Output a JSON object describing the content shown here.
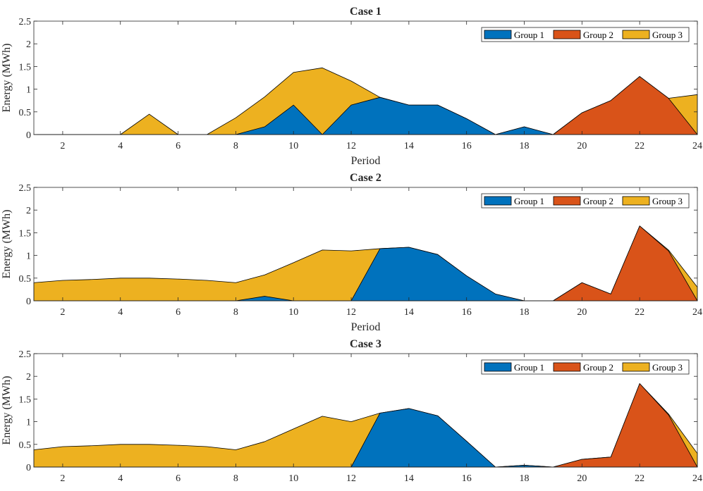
{
  "chart_data": [
    {
      "type": "area",
      "title": "Case 1",
      "xlabel": "Period",
      "ylabel": "Energy (MWh)",
      "xlim": [
        1,
        24
      ],
      "ylim": [
        0,
        2.5
      ],
      "xticks": [
        2,
        4,
        6,
        8,
        10,
        12,
        14,
        16,
        18,
        20,
        22,
        24
      ],
      "yticks": [
        0,
        0.5,
        1,
        1.5,
        2,
        2.5
      ],
      "x": [
        1,
        2,
        3,
        4,
        5,
        6,
        7,
        8,
        9,
        10,
        11,
        12,
        13,
        14,
        15,
        16,
        17,
        18,
        19,
        20,
        21,
        22,
        23,
        24
      ],
      "legend_position": "top-right",
      "series": [
        {
          "name": "Group 1",
          "color": "#0072BD",
          "values": [
            0,
            0,
            0,
            0,
            0,
            0,
            0,
            0,
            0.17,
            0.65,
            0,
            0.65,
            0.82,
            0.65,
            0.65,
            0.35,
            0,
            0.17,
            0,
            0,
            0,
            0,
            0,
            0
          ]
        },
        {
          "name": "Group 2",
          "color": "#D95319",
          "values": [
            0,
            0,
            0,
            0,
            0,
            0,
            0,
            0,
            0,
            0,
            0,
            0,
            0,
            0,
            0,
            0,
            0,
            0,
            0,
            0.48,
            0.75,
            1.28,
            0.8,
            0
          ]
        },
        {
          "name": "Group 3",
          "color": "#EDB120",
          "values": [
            0,
            0,
            0,
            0,
            0.45,
            0,
            0,
            0.37,
            0.83,
            1.37,
            1.47,
            1.18,
            0.82,
            0.65,
            0.65,
            0.35,
            0,
            0.17,
            0,
            0.48,
            0.75,
            1.28,
            0.8,
            0.88
          ]
        }
      ]
    },
    {
      "type": "area",
      "title": "Case 2",
      "xlabel": "Period",
      "ylabel": "Energy (MWh)",
      "xlim": [
        1,
        24
      ],
      "ylim": [
        0,
        2.5
      ],
      "xticks": [
        2,
        4,
        6,
        8,
        10,
        12,
        14,
        16,
        18,
        20,
        22,
        24
      ],
      "yticks": [
        0,
        0.5,
        1,
        1.5,
        2,
        2.5
      ],
      "x": [
        1,
        2,
        3,
        4,
        5,
        6,
        7,
        8,
        9,
        10,
        11,
        12,
        13,
        14,
        15,
        16,
        17,
        18,
        19,
        20,
        21,
        22,
        23,
        24
      ],
      "legend_position": "top-right",
      "series": [
        {
          "name": "Group 1",
          "color": "#0072BD",
          "values": [
            0,
            0,
            0,
            0,
            0,
            0,
            0,
            0,
            0.1,
            0,
            0,
            0,
            1.15,
            1.18,
            1.02,
            0.55,
            0.15,
            0,
            0,
            0,
            0,
            0,
            0,
            0
          ]
        },
        {
          "name": "Group 2",
          "color": "#D95319",
          "values": [
            0,
            0,
            0,
            0,
            0,
            0,
            0,
            0,
            0,
            0,
            0,
            0,
            0,
            0,
            0,
            0,
            0,
            0,
            0,
            0.4,
            0.15,
            1.65,
            1.1,
            0
          ]
        },
        {
          "name": "Group 3",
          "color": "#EDB120",
          "values": [
            0.4,
            0.45,
            0.47,
            0.5,
            0.5,
            0.48,
            0.45,
            0.4,
            0.57,
            0.84,
            1.12,
            1.1,
            1.15,
            1.18,
            1.02,
            0.55,
            0.15,
            0,
            0,
            0.4,
            0.15,
            1.65,
            1.12,
            0.3
          ]
        }
      ]
    },
    {
      "type": "area",
      "title": "Case 3",
      "xlabel": "",
      "ylabel": "Energy (MWh)",
      "xlim": [
        1,
        24
      ],
      "ylim": [
        0,
        2.5
      ],
      "xticks": [
        2,
        4,
        6,
        8,
        10,
        12,
        14,
        16,
        18,
        20,
        22,
        24
      ],
      "yticks": [
        0,
        0.5,
        1,
        1.5,
        2,
        2.5
      ],
      "x": [
        1,
        2,
        3,
        4,
        5,
        6,
        7,
        8,
        9,
        10,
        11,
        12,
        13,
        14,
        15,
        16,
        17,
        18,
        19,
        20,
        21,
        22,
        23,
        24
      ],
      "legend_position": "top-right",
      "series": [
        {
          "name": "Group 1",
          "color": "#0072BD",
          "values": [
            0,
            0,
            0,
            0,
            0,
            0,
            0,
            0,
            0,
            0,
            0,
            0,
            1.19,
            1.29,
            1.13,
            0.57,
            0,
            0.04,
            0,
            0,
            0,
            0,
            0,
            0
          ]
        },
        {
          "name": "Group 2",
          "color": "#D95319",
          "values": [
            0,
            0,
            0,
            0,
            0,
            0,
            0,
            0,
            0,
            0,
            0,
            0,
            0,
            0,
            0,
            0,
            0,
            0,
            0,
            0.17,
            0.22,
            1.84,
            1.15,
            0
          ]
        },
        {
          "name": "Group 3",
          "color": "#EDB120",
          "values": [
            0.38,
            0.45,
            0.47,
            0.5,
            0.5,
            0.48,
            0.45,
            0.38,
            0.56,
            0.84,
            1.12,
            1,
            1.19,
            1.29,
            1.13,
            0.57,
            0,
            0.04,
            0,
            0.17,
            0.22,
            1.84,
            1.17,
            0.3
          ]
        }
      ]
    }
  ]
}
